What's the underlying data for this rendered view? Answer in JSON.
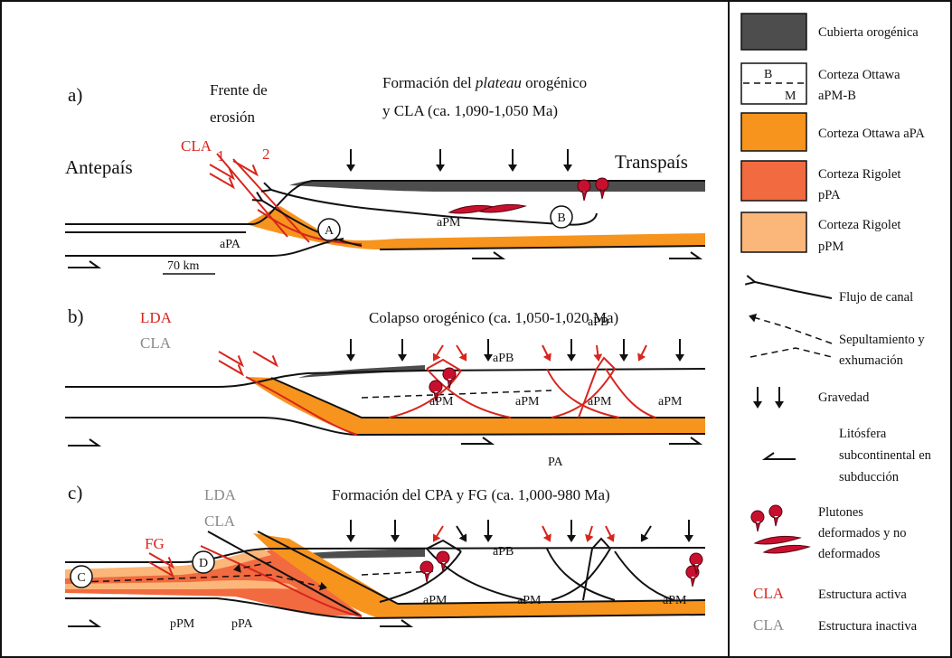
{
  "panel_a": {
    "label": "a)",
    "front": [
      "Frente de",
      "erosión"
    ],
    "title_1": [
      "Formación del ",
      "plateau",
      " orogénico"
    ],
    "title_2": "y CLA (ca. 1,090-1,050 Ma)",
    "fault_label": "CLA",
    "fault_numbers": [
      "1",
      "2"
    ],
    "foreland": "Antepaís",
    "hinterland": "Transpaís",
    "units": [
      "aPA",
      "aPM"
    ],
    "markers": [
      "A",
      "B"
    ],
    "scale": "70 km"
  },
  "panel_b": {
    "label": "b)",
    "active": "LDA",
    "inactive": "CLA",
    "title": "Colapso orogénico (ca. 1,050-1,020 Ma)",
    "units": [
      "aPB",
      "aPB",
      "aPM",
      "aPM",
      "aPM",
      "aPM",
      "PA"
    ]
  },
  "panel_c": {
    "label": "c)",
    "inactive": [
      "LDA",
      "CLA"
    ],
    "title": "Formación del CPA y FG (ca. 1,000-980 Ma)",
    "active": "FG",
    "markers": [
      "C",
      "D"
    ],
    "units": [
      "pPM",
      "pPA",
      "aPB",
      "aPM",
      "aPM",
      "aPM"
    ]
  },
  "legend": [
    {
      "label": [
        "Cubierta orogénica"
      ]
    },
    {
      "label": [
        "Corteza Ottawa",
        "aPM-B"
      ],
      "box_marks": [
        "B",
        "M"
      ]
    },
    {
      "label": [
        "Corteza Ottawa aPA"
      ]
    },
    {
      "label": [
        "Corteza Rigolet",
        "pPA"
      ]
    },
    {
      "label": [
        "Corteza Rigolet",
        "pPM"
      ]
    },
    {
      "label": [
        "Flujo de canal"
      ]
    },
    {
      "label": [
        "Sepultamiento y",
        "exhumación"
      ]
    },
    {
      "label": [
        "Gravedad"
      ]
    },
    {
      "label": [
        "Litósfera",
        "subcontinental en",
        "subducción"
      ]
    },
    {
      "label": [
        "Plutones",
        "deformados y no",
        "deformados"
      ]
    },
    {
      "symbol": "CLA",
      "label": [
        "Estructura activa"
      ]
    },
    {
      "symbol": "CLA",
      "label": [
        "Estructura inactiva"
      ]
    }
  ]
}
